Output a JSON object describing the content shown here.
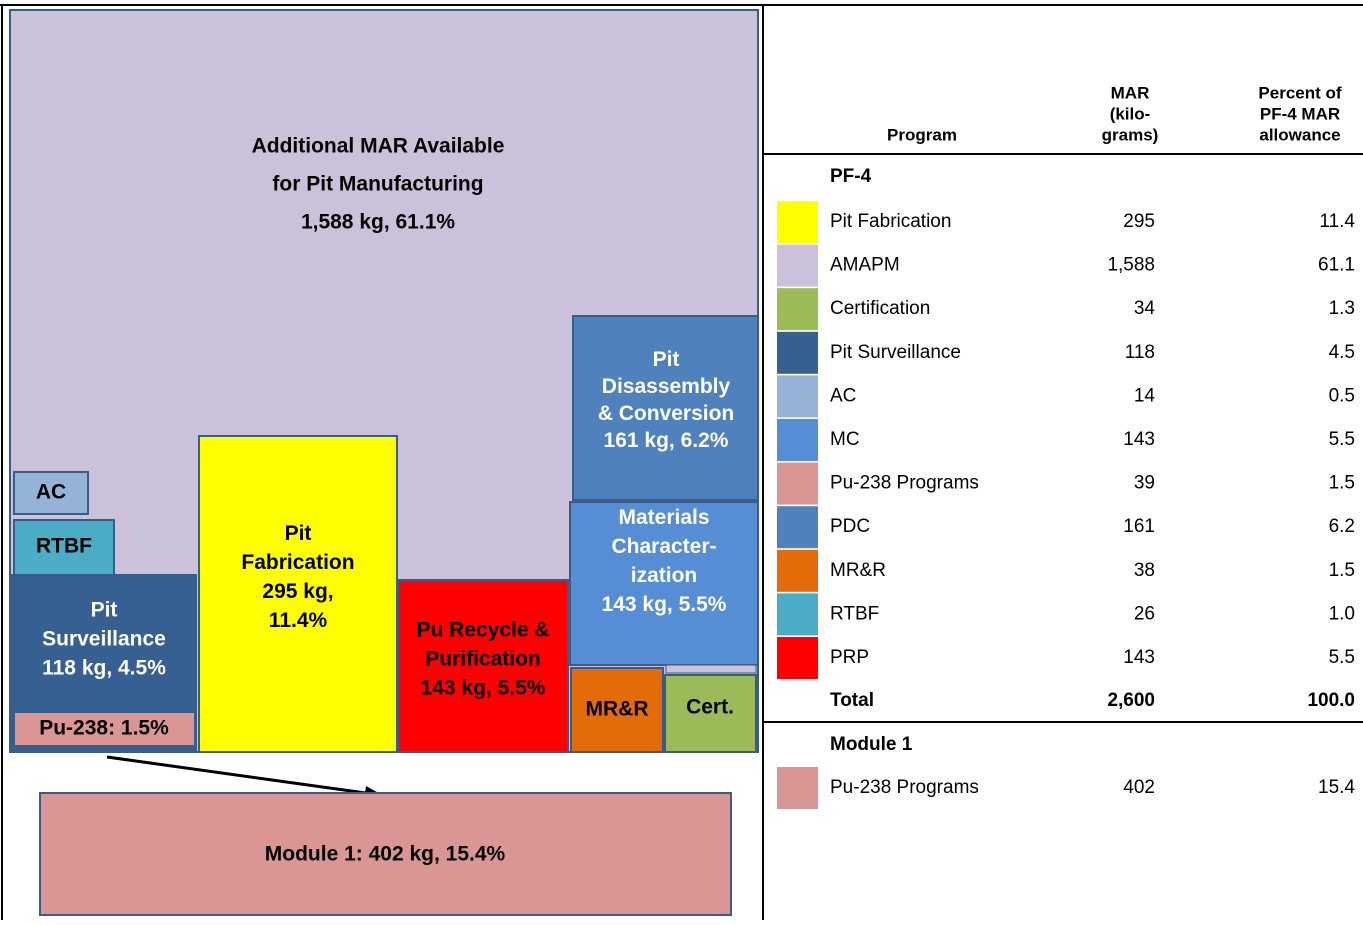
{
  "diagram": {
    "boxes": [
      {
        "lines": [
          "Additional MAR Available",
          "for Pit Manufacturing",
          "1,588 kg, 61.1%"
        ],
        "color": "#ccc1da",
        "text": "#000"
      },
      {
        "lines": [
          "AC"
        ],
        "color": "#95b3d7",
        "text": "#000"
      },
      {
        "lines": [
          "RTBF"
        ],
        "color": "#4bacc6",
        "text": "#000"
      },
      {
        "lines": [
          "Pit",
          "Surveillance",
          "118 kg, 4.5%"
        ],
        "color": "#376092",
        "text": "#fff"
      },
      {
        "lines": [
          "Pu-238: 1.5%"
        ],
        "color": "#d99694",
        "text": "#000"
      },
      {
        "lines": [
          "Pit",
          "Fabrication",
          "295 kg,",
          "11.4%"
        ],
        "color": "#ffff00",
        "text": "#000"
      },
      {
        "lines": [
          "Pu Recycle &",
          "Purification",
          "143 kg, 5.5%"
        ],
        "color": "#ff0000",
        "text": "#000"
      },
      {
        "lines": [
          "Pit",
          "Disassembly",
          "& Conversion",
          "161 kg, 6.2%"
        ],
        "color": "#4f81bd",
        "text": "#fff"
      },
      {
        "lines": [
          "Materials",
          "Character-",
          "ization",
          "143 kg, 5.5%"
        ],
        "color": "#558ed5",
        "text": "#fff"
      },
      {
        "lines": [
          "MR&R"
        ],
        "color": "#e36c09",
        "text": "#000"
      },
      {
        "lines": [
          "Cert."
        ],
        "color": "#9bbb59",
        "text": "#000"
      },
      {
        "lines": [
          "Module 1:  402 kg, 15.4%"
        ],
        "color": "#d99694",
        "text": "#000"
      }
    ]
  },
  "table": {
    "headers": [
      [
        "Program"
      ],
      [
        "MAR",
        "(kilo-",
        "grams)"
      ],
      [
        "Percent of",
        "PF-4 MAR",
        "allowance"
      ]
    ],
    "section1": "PF-4",
    "rows": [
      [
        "Pit Fabrication",
        "295",
        "11.4",
        "#ffff00"
      ],
      [
        "AMAPM",
        "1,588",
        "61.1",
        "#ccc1da"
      ],
      [
        "Certification",
        "34",
        "1.3",
        "#9bbb59"
      ],
      [
        "Pit Surveillance",
        "118",
        "4.5",
        "#376092"
      ],
      [
        "AC",
        "14",
        "0.5",
        "#95b3d7"
      ],
      [
        "MC",
        "143",
        "5.5",
        "#558ed5"
      ],
      [
        "Pu-238 Programs",
        "39",
        "1.5",
        "#d99694"
      ],
      [
        "PDC",
        "161",
        "6.2",
        "#4f81bd"
      ],
      [
        "MR&R",
        "38",
        "1.5",
        "#e36c09"
      ],
      [
        "RTBF",
        "26",
        "1.0",
        "#4bacc6"
      ],
      [
        "PRP",
        "143",
        "5.5",
        "#ff0000"
      ]
    ],
    "total": [
      "Total",
      "2,600",
      "100.0"
    ],
    "section2": "Module 1",
    "rows2": [
      [
        "Pu-238 Programs",
        "402",
        "15.4",
        "#d99694"
      ]
    ]
  }
}
